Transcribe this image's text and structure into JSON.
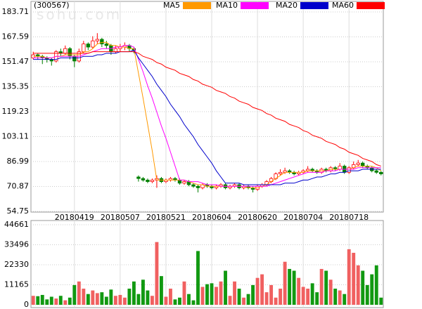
{
  "chart_data": [
    {
      "type": "candlestick",
      "title": "(300567)",
      "watermark": "sohu.com",
      "categories": [
        null,
        null,
        null,
        null,
        null,
        null,
        null,
        null,
        null,
        "20180419",
        null,
        null,
        null,
        null,
        null,
        null,
        null,
        null,
        null,
        "20180507",
        null,
        null,
        null,
        null,
        null,
        null,
        null,
        null,
        null,
        "20180521",
        null,
        null,
        null,
        null,
        null,
        null,
        null,
        null,
        null,
        "20180604",
        null,
        null,
        null,
        null,
        null,
        null,
        null,
        null,
        null,
        "20180620",
        null,
        null,
        null,
        null,
        null,
        null,
        null,
        null,
        null,
        "20180704",
        null,
        null,
        null,
        null,
        null,
        null,
        null,
        null,
        null,
        "20180718",
        null,
        null,
        null,
        null,
        null,
        null,
        null
      ],
      "ohlc": [
        [
          154,
          158,
          153,
          156
        ],
        [
          156,
          157,
          153,
          155
        ],
        [
          155,
          156,
          150,
          154
        ],
        [
          154,
          155,
          151,
          153
        ],
        [
          153,
          154,
          149,
          152
        ],
        [
          152,
          159,
          151,
          158
        ],
        [
          158,
          160,
          155,
          157
        ],
        [
          157,
          162,
          156,
          160
        ],
        [
          160,
          161,
          153,
          155
        ],
        [
          155,
          156,
          148,
          152
        ],
        [
          152,
          160,
          151,
          158
        ],
        [
          158,
          165,
          157,
          163
        ],
        [
          163,
          164,
          159,
          161
        ],
        [
          161,
          168,
          160,
          165
        ],
        [
          165,
          170,
          163,
          166
        ],
        [
          166,
          167,
          161,
          163
        ],
        [
          163,
          165,
          160,
          162
        ],
        [
          162,
          163,
          156,
          158
        ],
        [
          158,
          162,
          157,
          160
        ],
        [
          160,
          163,
          158,
          161
        ],
        [
          161,
          164,
          159,
          162
        ],
        [
          162,
          163,
          158,
          160
        ],
        [
          160,
          161,
          157,
          159
        ],
        [
          77,
          78,
          74,
          76
        ],
        [
          76,
          77,
          74,
          75
        ],
        [
          75,
          76,
          73,
          74
        ],
        [
          74,
          76,
          73,
          75
        ],
        [
          75,
          78,
          70,
          76
        ],
        [
          76,
          77,
          73,
          74
        ],
        [
          74,
          76,
          73,
          75
        ],
        [
          75,
          77,
          74,
          76
        ],
        [
          76,
          77,
          74,
          75
        ],
        [
          75,
          76,
          72,
          73
        ],
        [
          73,
          75,
          72,
          74
        ],
        [
          74,
          75,
          71,
          72
        ],
        [
          72,
          73,
          70,
          71
        ],
        [
          71,
          72,
          67,
          70
        ],
        [
          70,
          73,
          69,
          72
        ],
        [
          72,
          73,
          70,
          71
        ],
        [
          71,
          72,
          69,
          70
        ],
        [
          70,
          72,
          69,
          71
        ],
        [
          71,
          73,
          70,
          72
        ],
        [
          72,
          73,
          69,
          70
        ],
        [
          70,
          72,
          69,
          71
        ],
        [
          71,
          73,
          70,
          72
        ],
        [
          72,
          73,
          69,
          70
        ],
        [
          70,
          72,
          69,
          71
        ],
        [
          71,
          72,
          69,
          70
        ],
        [
          70,
          71,
          67,
          69
        ],
        [
          69,
          72,
          68,
          71
        ],
        [
          71,
          73,
          70,
          72
        ],
        [
          72,
          75,
          71,
          74
        ],
        [
          74,
          77,
          73,
          76
        ],
        [
          76,
          80,
          75,
          79
        ],
        [
          79,
          82,
          78,
          80
        ],
        [
          80,
          83,
          79,
          81
        ],
        [
          81,
          82,
          79,
          80
        ],
        [
          80,
          81,
          78,
          79
        ],
        [
          79,
          81,
          78,
          80
        ],
        [
          80,
          82,
          79,
          81
        ],
        [
          81,
          84,
          80,
          82
        ],
        [
          82,
          83,
          80,
          81
        ],
        [
          81,
          82,
          79,
          80
        ],
        [
          80,
          83,
          79,
          82
        ],
        [
          82,
          83,
          80,
          81
        ],
        [
          81,
          84,
          80,
          83
        ],
        [
          83,
          84,
          81,
          82
        ],
        [
          82,
          86,
          81,
          84
        ],
        [
          84,
          85,
          79,
          80
        ],
        [
          80,
          84,
          79,
          83
        ],
        [
          83,
          87,
          82,
          85
        ],
        [
          85,
          88,
          84,
          86
        ],
        [
          86,
          87,
          83,
          84
        ],
        [
          84,
          85,
          82,
          83
        ],
        [
          83,
          84,
          80,
          81
        ],
        [
          81,
          82,
          79,
          80
        ],
        [
          80,
          81,
          78,
          79
        ]
      ],
      "up_color": "#ff0000",
      "down_color": "#008000",
      "series": [
        {
          "name": "MA5",
          "color": "#ff9900",
          "values": [
            155,
            155,
            155,
            154,
            154,
            155,
            155,
            156,
            156,
            156,
            156,
            158,
            158,
            160,
            163,
            164,
            164,
            162,
            162,
            161,
            161,
            160,
            160,
            144,
            128,
            111,
            94,
            75,
            75,
            75,
            75,
            75,
            75,
            75,
            74,
            73,
            72,
            72,
            71,
            71,
            71,
            71,
            71,
            71,
            71,
            71,
            71,
            70,
            70,
            70,
            71,
            72,
            74,
            76,
            78,
            80,
            80,
            80,
            80,
            80,
            81,
            81,
            81,
            81,
            81,
            82,
            82,
            82,
            82,
            82,
            83,
            84,
            84,
            84,
            84,
            83,
            81
          ]
        },
        {
          "name": "MA10",
          "color": "#ff00ff",
          "values": [
            154,
            154,
            154,
            154,
            154,
            155,
            155,
            155,
            155,
            155,
            155,
            156,
            157,
            158,
            159,
            160,
            160,
            160,
            161,
            161,
            162,
            162,
            161,
            153,
            145,
            136,
            128,
            119,
            110,
            102,
            93,
            84,
            75,
            75,
            74,
            74,
            74,
            73,
            72,
            72,
            72,
            71,
            71,
            71,
            71,
            71,
            71,
            71,
            71,
            71,
            71,
            71,
            72,
            73,
            74,
            75,
            76,
            77,
            78,
            79,
            80,
            80,
            80,
            80,
            81,
            81,
            81,
            82,
            82,
            82,
            82,
            83,
            83,
            83,
            83,
            83,
            83
          ]
        },
        {
          "name": "MA20",
          "color": "#0000cc",
          "values": [
            153,
            153,
            153,
            153,
            153,
            153,
            154,
            154,
            154,
            154,
            154,
            155,
            155,
            155,
            156,
            156,
            157,
            157,
            157,
            158,
            158,
            158,
            159,
            154,
            150,
            146,
            142,
            137,
            133,
            129,
            124,
            120,
            116,
            111,
            107,
            103,
            98,
            94,
            90,
            86,
            81,
            77,
            73,
            73,
            73,
            73,
            72,
            72,
            72,
            72,
            72,
            72,
            72,
            72,
            72,
            73,
            73,
            73,
            74,
            75,
            75,
            76,
            77,
            77,
            78,
            79,
            79,
            80,
            80,
            81,
            81,
            81,
            82,
            82,
            82,
            82,
            82
          ]
        },
        {
          "name": "MA60",
          "color": "#ff0000",
          "values": [
            157,
            157,
            157,
            157,
            157,
            157,
            157,
            157,
            157,
            157,
            157,
            157,
            157,
            158,
            158,
            158,
            158,
            158,
            158,
            158,
            158,
            158,
            158,
            157,
            155,
            154,
            153,
            151,
            150,
            148,
            147,
            146,
            144,
            143,
            142,
            140,
            139,
            137,
            136,
            135,
            133,
            132,
            131,
            129,
            128,
            126,
            125,
            124,
            122,
            121,
            120,
            118,
            117,
            115,
            114,
            113,
            111,
            110,
            109,
            107,
            106,
            104,
            103,
            102,
            100,
            99,
            98,
            96,
            95,
            93,
            92,
            91,
            89,
            88,
            87,
            85,
            84
          ]
        }
      ],
      "ylim": [
        54.75,
        183.71
      ],
      "yticks": [
        54.75,
        70.87,
        86.99,
        103.11,
        119.23,
        135.35,
        151.47,
        167.59,
        183.71
      ],
      "grid": true
    },
    {
      "type": "bar",
      "values": [
        5000,
        4800,
        5500,
        3000,
        4500,
        3500,
        5000,
        2500,
        4000,
        11000,
        13000,
        9000,
        6000,
        8000,
        6500,
        7000,
        4500,
        8500,
        5000,
        5500,
        4000,
        9000,
        13000,
        6000,
        14000,
        8000,
        5000,
        35000,
        16000,
        4500,
        9000,
        3000,
        4000,
        13000,
        6000,
        2500,
        30000,
        10000,
        11500,
        12000,
        10000,
        13000,
        19000,
        5000,
        13000,
        9000,
        4000,
        6000,
        11000,
        15000,
        17000,
        7000,
        11000,
        4000,
        9000,
        24000,
        20000,
        19000,
        15000,
        10000,
        9000,
        12000,
        7000,
        20000,
        19000,
        14000,
        9000,
        8000,
        6000,
        31000,
        29000,
        22000,
        19000,
        11000,
        17000,
        22000,
        4000
      ],
      "ylim": [
        0,
        44661
      ],
      "yticks": [
        0,
        11165,
        22330,
        33496,
        44661
      ],
      "grid": true
    }
  ]
}
